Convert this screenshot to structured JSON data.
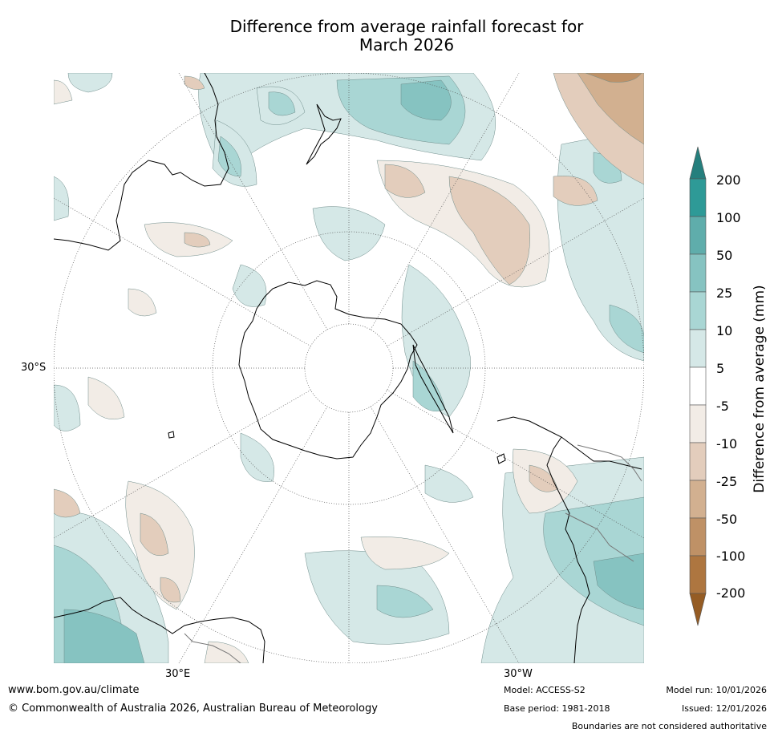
{
  "title": {
    "line1": "Difference from average rainfall forecast for",
    "line2": "March 2026"
  },
  "map": {
    "projection": "south-polar-stereographic",
    "lat_label": "30°S",
    "lon_labels": [
      "30°E",
      "30°W"
    ]
  },
  "colorbar": {
    "title": "Difference from average (mm)",
    "ticks": [
      "200",
      "100",
      "50",
      "25",
      "10",
      "5",
      "-5",
      "-10",
      "-25",
      "-50",
      "-100",
      "-200"
    ],
    "colors": {
      "over": "#257f7d",
      "wet_200": "#2e9a97",
      "wet_100": "#5fadab",
      "wet_50": "#86c3c1",
      "wet_25": "#a9d6d4",
      "wet_10": "#d5e8e7",
      "neutral": "#ffffff",
      "dry_5": "#f2ece6",
      "dry_10": "#e3cdbc",
      "dry_25": "#d2b090",
      "dry_50": "#bf9166",
      "dry_100": "#ae7640",
      "under": "#955c24"
    }
  },
  "footer": {
    "website": "www.bom.gov.au/climate",
    "copyright": "© Commonwealth of Australia 2026, Australian Bureau of Meteorology",
    "model": "Model: ACCESS-S2",
    "base_period": "Base period: 1981-2018",
    "model_run": "Model run: 10/01/2026",
    "issued": "Issued: 12/01/2026",
    "disclaimer": "Boundaries are not considered authoritative"
  }
}
